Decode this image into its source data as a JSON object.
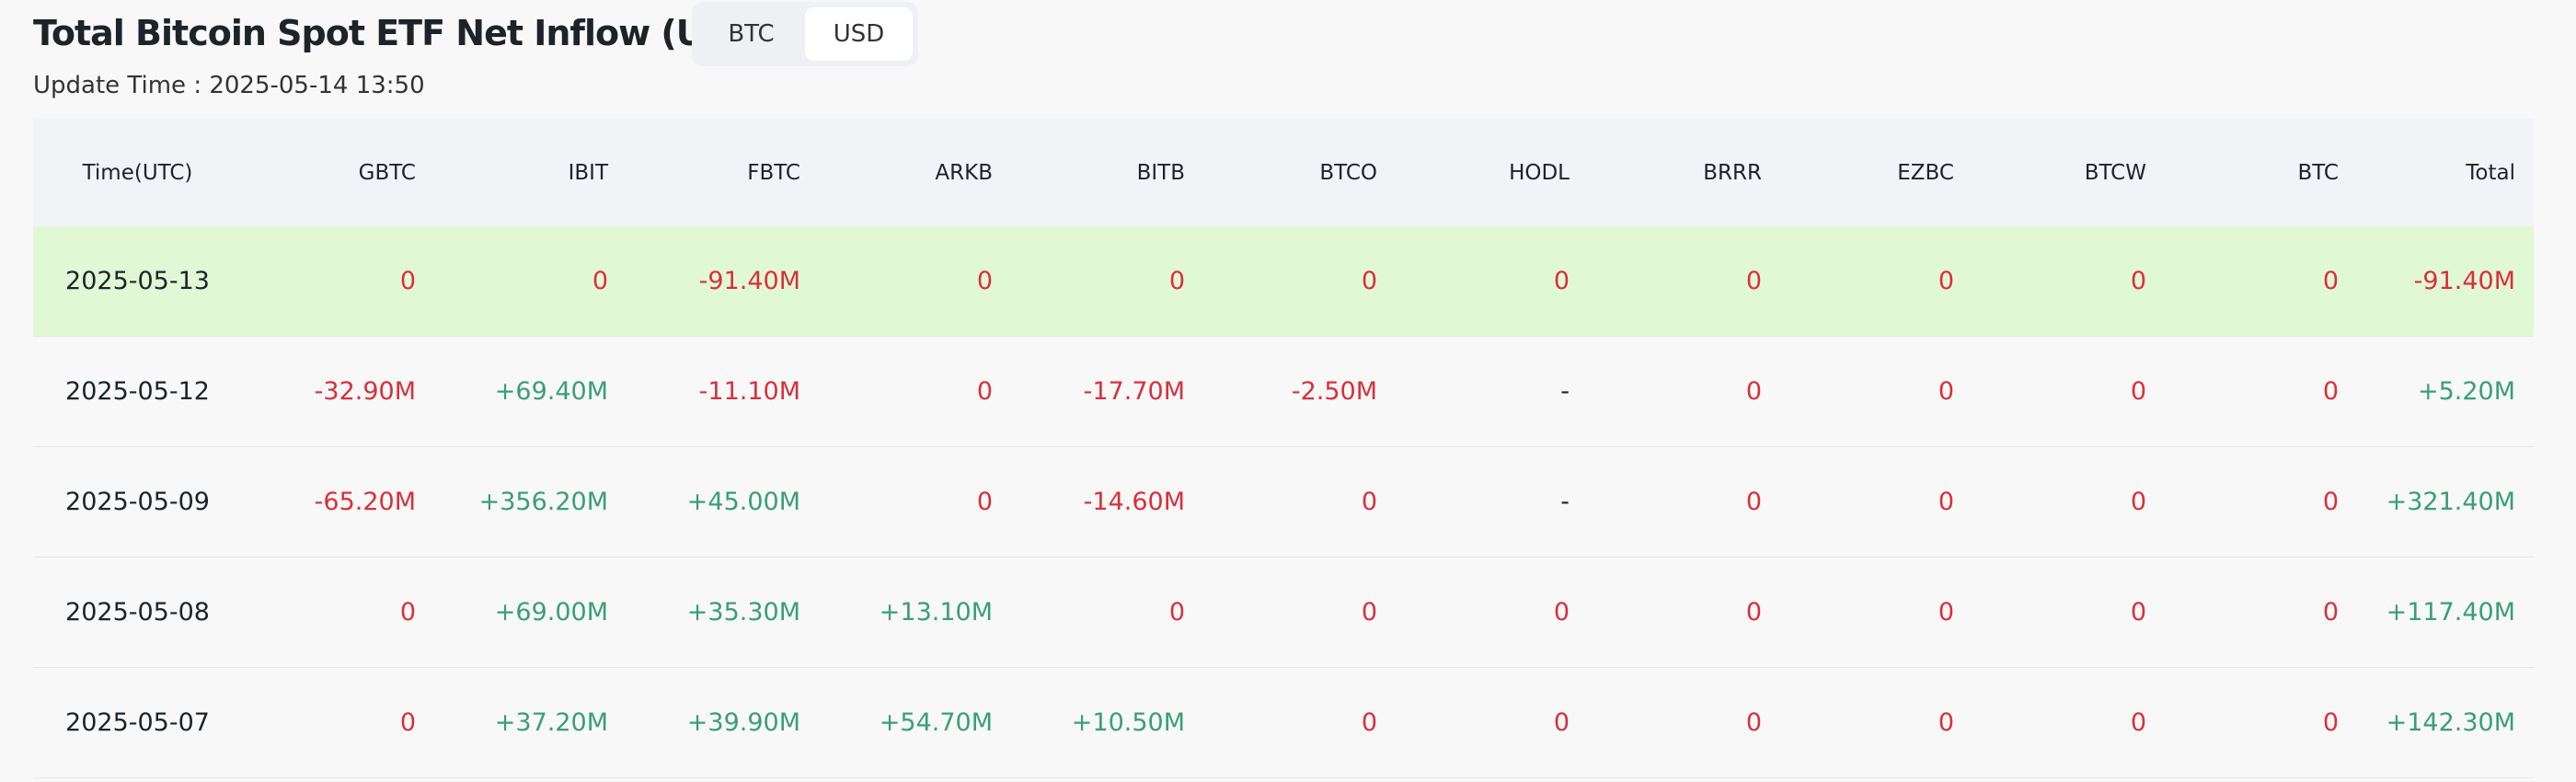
{
  "header": {
    "title": "Total Bitcoin Spot ETF Net Inflow (USD)",
    "update_time": "Update Time : 2025-05-14 13:50"
  },
  "toggle": [
    "BTC",
    "USD"
  ],
  "table": {
    "columns": [
      "Time(UTC)",
      "GBTC",
      "IBIT",
      "FBTC",
      "ARKB",
      "BITB",
      "BTCO",
      "HODL",
      "BRRR",
      "EZBC",
      "BTCW",
      "BTC",
      "Total"
    ],
    "rows": [
      [
        "2025-05-13",
        "0",
        "0",
        "-91.40M",
        "0",
        "0",
        "0",
        "0",
        "0",
        "0",
        "0",
        "0",
        "-91.40M"
      ],
      [
        "2025-05-12",
        "-32.90M",
        "+69.40M",
        "-11.10M",
        "0",
        "-17.70M",
        "-2.50M",
        "-",
        "0",
        "0",
        "0",
        "0",
        "+5.20M"
      ],
      [
        "2025-05-09",
        "-65.20M",
        "+356.20M",
        "+45.00M",
        "0",
        "-14.60M",
        "0",
        "-",
        "0",
        "0",
        "0",
        "0",
        "+321.40M"
      ],
      [
        "2025-05-08",
        "0",
        "+69.00M",
        "+35.30M",
        "+13.10M",
        "0",
        "0",
        "0",
        "0",
        "0",
        "0",
        "0",
        "+117.40M"
      ],
      [
        "2025-05-07",
        "0",
        "+37.20M",
        "+39.90M",
        "+54.70M",
        "+10.50M",
        "0",
        "0",
        "0",
        "0",
        "0",
        "0",
        "+142.30M"
      ]
    ]
  }
}
